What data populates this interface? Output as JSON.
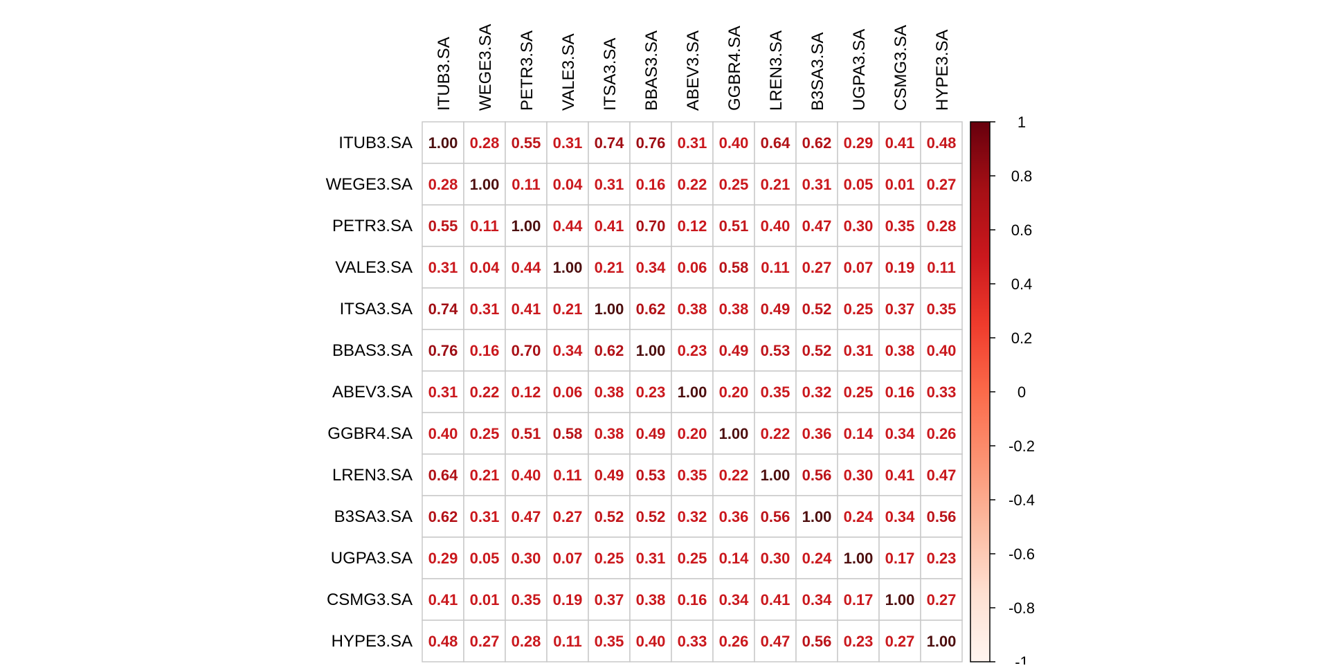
{
  "chart_data": {
    "type": "heatmap",
    "title": "",
    "variables": [
      "ITUB3.SA",
      "WEGE3.SA",
      "PETR3.SA",
      "VALE3.SA",
      "ITSA3.SA",
      "BBAS3.SA",
      "ABEV3.SA",
      "GGBR4.SA",
      "LREN3.SA",
      "B3SA3.SA",
      "UGPA3.SA",
      "CSMG3.SA",
      "HYPE3.SA"
    ],
    "matrix": [
      [
        1.0,
        0.28,
        0.55,
        0.31,
        0.74,
        0.76,
        0.31,
        0.4,
        0.64,
        0.62,
        0.29,
        0.41,
        0.48
      ],
      [
        0.28,
        1.0,
        0.11,
        0.04,
        0.31,
        0.16,
        0.22,
        0.25,
        0.21,
        0.31,
        0.05,
        0.01,
        0.27
      ],
      [
        0.55,
        0.11,
        1.0,
        0.44,
        0.41,
        0.7,
        0.12,
        0.51,
        0.4,
        0.47,
        0.3,
        0.35,
        0.28
      ],
      [
        0.31,
        0.04,
        0.44,
        1.0,
        0.21,
        0.34,
        0.06,
        0.58,
        0.11,
        0.27,
        0.07,
        0.19,
        0.11
      ],
      [
        0.74,
        0.31,
        0.41,
        0.21,
        1.0,
        0.62,
        0.38,
        0.38,
        0.49,
        0.52,
        0.25,
        0.37,
        0.35
      ],
      [
        0.76,
        0.16,
        0.7,
        0.34,
        0.62,
        1.0,
        0.23,
        0.49,
        0.53,
        0.52,
        0.31,
        0.38,
        0.4
      ],
      [
        0.31,
        0.22,
        0.12,
        0.06,
        0.38,
        0.23,
        1.0,
        0.2,
        0.35,
        0.32,
        0.25,
        0.16,
        0.33
      ],
      [
        0.4,
        0.25,
        0.51,
        0.58,
        0.38,
        0.49,
        0.2,
        1.0,
        0.22,
        0.36,
        0.14,
        0.34,
        0.26
      ],
      [
        0.64,
        0.21,
        0.4,
        0.11,
        0.49,
        0.53,
        0.35,
        0.22,
        1.0,
        0.56,
        0.3,
        0.41,
        0.47
      ],
      [
        0.62,
        0.31,
        0.47,
        0.27,
        0.52,
        0.52,
        0.32,
        0.36,
        0.56,
        1.0,
        0.24,
        0.34,
        0.56
      ],
      [
        0.29,
        0.05,
        0.3,
        0.07,
        0.25,
        0.31,
        0.25,
        0.14,
        0.3,
        0.24,
        1.0,
        0.17,
        0.23
      ],
      [
        0.41,
        0.01,
        0.35,
        0.19,
        0.37,
        0.38,
        0.16,
        0.34,
        0.41,
        0.34,
        0.17,
        1.0,
        0.27
      ],
      [
        0.48,
        0.27,
        0.28,
        0.11,
        0.35,
        0.4,
        0.33,
        0.26,
        0.47,
        0.56,
        0.23,
        0.27,
        1.0
      ]
    ],
    "value_range": [
      -1,
      1
    ],
    "colorbar": {
      "ticks": [
        1,
        0.8,
        0.6,
        0.4,
        0.2,
        0,
        -0.2,
        -0.4,
        -0.6,
        -0.8,
        -1
      ],
      "tick_labels": [
        "1",
        "0.8",
        "0.6",
        "0.4",
        "0.2",
        "0",
        "-0.2",
        "-0.4",
        "-0.6",
        "-0.8",
        "-1"
      ],
      "position": "right"
    },
    "colorscale": [
      "#FFF5F0",
      "#FEE0D2",
      "#FCBBA1",
      "#FC9272",
      "#FB6A4A",
      "#EF3B2C",
      "#CB181D",
      "#A50F15",
      "#67000D"
    ],
    "grid": true,
    "cell_text_color": "#CC1A1A",
    "cell_text_color_max": "#4D0F0F",
    "grid_color": "#C8C8C8"
  }
}
